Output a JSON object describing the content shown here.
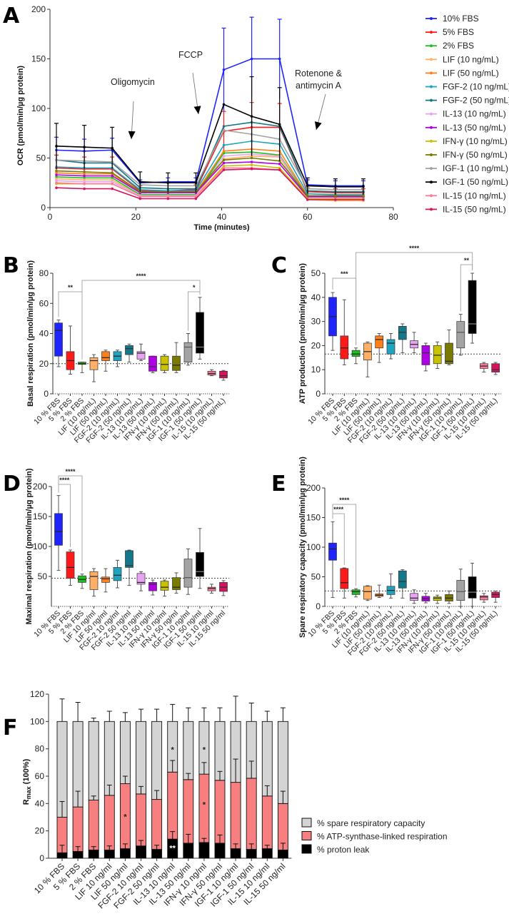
{
  "panels": [
    "A",
    "B",
    "C",
    "D",
    "E",
    "F"
  ],
  "colors": [
    "#1f24ff",
    "#ff1a1a",
    "#1fbf1f",
    "#ffb066",
    "#ff7f1a",
    "#1fa3bf",
    "#14788a",
    "#e8a3f2",
    "#b000e6",
    "#c9c200",
    "#7a7a00",
    "#a3a3a3",
    "#000000",
    "#ff7a99",
    "#d4145f"
  ],
  "chart_data": [
    {
      "panel": "A",
      "type": "line",
      "xlabel": "Time (minutes)",
      "ylabel": "OCR (pmol/min/µg protein)",
      "xlim": [
        0,
        80
      ],
      "ylim": [
        0,
        200
      ],
      "xticks": [
        "0",
        "20",
        "40",
        "60",
        "80"
      ],
      "yticks": [
        "0",
        "50",
        "100",
        "150",
        "200"
      ],
      "x": [
        1.5,
        8,
        14.5,
        21,
        27.5,
        34,
        40.5,
        47,
        53.5,
        60,
        66.5,
        73
      ],
      "annotations": [
        [
          "Oligomycin"
        ],
        [
          "FCCP"
        ],
        [
          "Rotenone &",
          "antimycin A"
        ]
      ],
      "series": [
        {
          "name": "10% FBS",
          "values": [
            58,
            57,
            58,
            25,
            26,
            26,
            139,
            150,
            150,
            23,
            22,
            22
          ],
          "err": [
            13,
            12,
            12,
            3,
            4,
            4,
            42,
            42,
            40,
            5,
            5,
            5
          ]
        },
        {
          "name": "5% FBS",
          "values": [
            40,
            39,
            39,
            17,
            17,
            18,
            77,
            81,
            81,
            16,
            15,
            15
          ],
          "err": [
            13,
            12,
            12,
            5,
            5,
            5,
            20,
            25,
            24,
            4,
            4,
            4
          ]
        },
        {
          "name": "2% FBS",
          "values": [
            31,
            30,
            30,
            13,
            13,
            13,
            55,
            56,
            53,
            11,
            10,
            10
          ]
        },
        {
          "name": "LIF (10 ng/mL)",
          "values": [
            29,
            28,
            28,
            12,
            11,
            11,
            49,
            52,
            51,
            8,
            7,
            7
          ]
        },
        {
          "name": "LIF (50 ng/mL)",
          "values": [
            35,
            34,
            34,
            15,
            15,
            15,
            57,
            59,
            57,
            12,
            11,
            11
          ]
        },
        {
          "name": "FGF-2 (10 ng/mL)",
          "values": [
            41,
            40,
            40,
            18,
            17,
            17,
            63,
            67,
            64,
            14,
            13,
            13
          ]
        },
        {
          "name": "FGF-2 (50 ng/mL)",
          "values": [
            48,
            45,
            45,
            20,
            19,
            19,
            82,
            86,
            82,
            17,
            16,
            16
          ]
        },
        {
          "name": "IL-13 (10 ng/mL)",
          "values": [
            27,
            26,
            26,
            12,
            12,
            12,
            52,
            54,
            52,
            10,
            10,
            10
          ]
        },
        {
          "name": "IL-13 (50 ng/mL)",
          "values": [
            33,
            32,
            32,
            15,
            15,
            15,
            45,
            46,
            44,
            11,
            11,
            11
          ]
        },
        {
          "name": "IFN-γ (10 ng/mL)",
          "values": [
            24,
            24,
            24,
            11,
            11,
            11,
            42,
            43,
            40,
            9,
            9,
            9
          ]
        },
        {
          "name": "IFN-γ (50 ng/mL)",
          "values": [
            37,
            36,
            35,
            16,
            16,
            16,
            48,
            50,
            47,
            12,
            12,
            12
          ]
        },
        {
          "name": "IGF-1 (10 ng/mL)",
          "values": [
            48,
            47,
            46,
            23,
            22,
            22,
            78,
            74,
            69,
            19,
            18,
            18
          ]
        },
        {
          "name": "IGF-1 (50 ng/mL)",
          "values": [
            62,
            61,
            60,
            26,
            25,
            25,
            104,
            92,
            84,
            22,
            21,
            21
          ],
          "err": [
            23,
            22,
            21,
            10,
            10,
            10,
            0,
            40,
            37,
            8,
            8,
            8
          ]
        },
        {
          "name": "IL-15 (10 ng/mL)",
          "values": [
            25,
            24,
            24,
            11,
            11,
            11,
            40,
            40,
            38,
            8,
            8,
            8
          ]
        },
        {
          "name": "IL-15 (50 ng/mL)",
          "values": [
            20,
            19,
            19,
            9,
            9,
            9,
            38,
            39,
            38,
            8,
            8,
            8
          ]
        }
      ]
    },
    {
      "panel": "B",
      "type": "box",
      "ylabel": "Basal respiration (pmol/min/µg protein)",
      "ylim": [
        0,
        80
      ],
      "yticks": [
        "0",
        "20",
        "40",
        "60",
        "80"
      ],
      "ref_line": 20,
      "categories": [
        "10 % FBS",
        "5 % FBS",
        "2 % FBS",
        "LIF (10 ng/mL)",
        "LIF (50 ng/mL)",
        "FGF-2 (10 ng/mL)",
        "FGF-2 (50 ng/mL)",
        "IL-13 (10 ng/mL)",
        "IL-13 (50 ng/mL)",
        "IFN-γ (10 ng/mL)",
        "IFN-γ (50 ng/mL)",
        "IGF-1 (10 ng/mL)",
        "IGF-1 (50 ng/mL)",
        "IL-15 (10 ng/mL)",
        "IL-15 (50 ng/mL)"
      ],
      "boxes": [
        [
          18,
          25,
          42,
          47,
          49
        ],
        [
          13,
          16,
          22,
          28,
          45
        ],
        [
          14,
          19.5,
          20,
          21,
          21
        ],
        [
          8,
          16,
          22,
          24,
          26
        ],
        [
          15,
          22,
          24,
          28,
          29
        ],
        [
          18,
          22,
          25,
          28,
          29
        ],
        [
          21,
          26,
          30,
          32,
          33
        ],
        [
          22,
          23,
          27,
          28,
          33
        ],
        [
          14,
          15,
          18,
          25,
          25
        ],
        [
          14,
          15.5,
          19.5,
          25,
          26
        ],
        [
          14,
          15.5,
          19,
          25,
          34
        ],
        [
          19,
          21,
          31,
          34,
          40
        ],
        [
          23,
          27,
          31,
          54,
          64
        ],
        [
          12,
          12.5,
          13.5,
          15,
          16
        ],
        [
          9,
          10.5,
          12,
          15,
          15.5
        ]
      ],
      "significance": [
        {
          "from": 0,
          "to": 2,
          "label": "**"
        },
        {
          "from": 2,
          "to": 12,
          "label": "****"
        },
        {
          "from": 11,
          "to": 12,
          "label": "*"
        }
      ]
    },
    {
      "panel": "C",
      "type": "box",
      "ylabel": "ATP production (pmol/min/µg protein)",
      "ylim": [
        0,
        50
      ],
      "yticks": [
        "0",
        "10",
        "20",
        "30",
        "40",
        "50"
      ],
      "ref_line": 16.5,
      "categories": [
        "10 % FBS",
        "5 % FBS",
        "2 % FBS",
        "LIF (10 ng/mL)",
        "LIF (50 ng/mL)",
        "FGF-2 (10 ng/mL)",
        "FGF-2 (50 ng/mL)",
        "IL-13 (10 ng/mL)",
        "IL-13 (50 ng/mL)",
        "IFN-γ (10 ng/mL)",
        "IFN-γ (50 ng/mL)",
        "IGF-1 (10 ng/mL)",
        "IGF-1 (50 ng/mL)",
        "IL-15 (10 ng/mL)",
        "IL-15 (50 ng/mL)"
      ],
      "boxes": [
        [
          18,
          24,
          32,
          40,
          42
        ],
        [
          12,
          14.5,
          19,
          24,
          39
        ],
        [
          12.5,
          15.5,
          16.5,
          18,
          19
        ],
        [
          7,
          14,
          17.5,
          21,
          21.5
        ],
        [
          13,
          19,
          22.5,
          24,
          25
        ],
        [
          14.5,
          16.5,
          21,
          22.5,
          25
        ],
        [
          17,
          22.5,
          25.5,
          28,
          29
        ],
        [
          17,
          19,
          20.5,
          22,
          25.5
        ],
        [
          9.5,
          12,
          17,
          20,
          21
        ],
        [
          10.5,
          12.5,
          16,
          20,
          21.5
        ],
        [
          12,
          12.5,
          13.5,
          21,
          26.5
        ],
        [
          16,
          19,
          25.5,
          30,
          33
        ],
        [
          21,
          25,
          29,
          47,
          50
        ],
        [
          9,
          10.5,
          11.5,
          12.5,
          13
        ],
        [
          8,
          9,
          10,
          12.5,
          13
        ]
      ],
      "significance": [
        {
          "from": 0,
          "to": 2,
          "label": "***"
        },
        {
          "from": 2,
          "to": 12,
          "label": "****"
        },
        {
          "from": 11,
          "to": 12,
          "label": "**"
        }
      ]
    },
    {
      "panel": "D",
      "type": "box",
      "ylabel": "Maximal respiration (pmol/min/µg protein)",
      "ylim": [
        0,
        200
      ],
      "yticks": [
        "50",
        "100",
        "150",
        "200"
      ],
      "ref_line": 47,
      "categories": [
        "10 % FBS",
        "5 % FBS",
        "2 % FBS",
        "LIF 10 ng/ml",
        "LIF 50 ng/ml",
        "FGF-2 10 ng/ml",
        "FGF-2 50 ng/ml",
        "IL-13 10 ng/ml",
        "IL-13 50 ng/ml",
        "IFN-γ 10 ng/ml",
        "IFN-γ 50 ng/ml",
        "IGF-1 10 ng/ml",
        "IGF-1 50 ng/ml",
        "IL-15 10 ng/ml",
        "IL-15 50 ng/ml"
      ],
      "boxes": [
        [
          60,
          102,
          125,
          155,
          185
        ],
        [
          35,
          47,
          65,
          91,
          94
        ],
        [
          30,
          40,
          45,
          51,
          54
        ],
        [
          17,
          28,
          50,
          58,
          63
        ],
        [
          24,
          40,
          46,
          49,
          63
        ],
        [
          31,
          43,
          52,
          65,
          77
        ],
        [
          35,
          65,
          68,
          93,
          94
        ],
        [
          26,
          37,
          40,
          55,
          58
        ],
        [
          19,
          26,
          37,
          40,
          44
        ],
        [
          17,
          27,
          32,
          42,
          44
        ],
        [
          22,
          28,
          32,
          48,
          56
        ],
        [
          20,
          32,
          48,
          79,
          96
        ],
        [
          30,
          50,
          58,
          90,
          130
        ],
        [
          22,
          26,
          30,
          32,
          37
        ],
        [
          18,
          25,
          32,
          40,
          43
        ]
      ],
      "significance": [
        {
          "from": 0,
          "to": 1,
          "label": "****"
        },
        {
          "from": 0,
          "to": 2,
          "label": "****"
        }
      ]
    },
    {
      "panel": "E",
      "type": "box",
      "ylabel": "Spare respiratory capacity (pmol/min/µg protein)",
      "ylim": [
        0,
        200
      ],
      "yticks": [
        "0",
        "50",
        "100",
        "150",
        "200"
      ],
      "ref_line": 26,
      "categories": [
        "10 % FBS",
        "5 % FBS",
        "2 % FBS",
        "LIF (10 ng/mL)",
        "LIF (50 ng/mL)",
        "FGF-2 (10 ng/mL)",
        "FGF-2 (50 ng/mL)",
        "IL-13 (10 ng/mL)",
        "IL-13 (50 ng/mL)",
        "IFN-γ (10 ng/mL)",
        "IFN-γ (50 ng/mL)",
        "IGF-1 (10 ng/mL)",
        "IGF-1 (50 ng/mL)",
        "IL-15 (10 ng/mL)",
        "IL-15 (50 ng/mL)"
      ],
      "boxes": [
        [
          15,
          78,
          97,
          107,
          143
        ],
        [
          14,
          30,
          40,
          64,
          65
        ],
        [
          16,
          20,
          25,
          28,
          30
        ],
        [
          10,
          12,
          25,
          34,
          35
        ],
        [
          15,
          17,
          19,
          21,
          36
        ],
        [
          14,
          20,
          27,
          34,
          55
        ],
        [
          14,
          31,
          42,
          60,
          62
        ],
        [
          5,
          10,
          14,
          22,
          28
        ],
        [
          6,
          9,
          13,
          17,
          22
        ],
        [
          5,
          10,
          14,
          16,
          19
        ],
        [
          5,
          9,
          14,
          20,
          26
        ],
        [
          0,
          10,
          25,
          44,
          63
        ],
        [
          0,
          14,
          24,
          50,
          73
        ],
        [
          7,
          11,
          16,
          18,
          22
        ],
        [
          7,
          15,
          20,
          24,
          26
        ]
      ],
      "significance": [
        {
          "from": 0,
          "to": 1,
          "label": "****"
        },
        {
          "from": 0,
          "to": 2,
          "label": "****"
        }
      ]
    },
    {
      "panel": "F",
      "type": "bar",
      "stacked": true,
      "ylabel": "R",
      "ylabel_sub": "max",
      "ylabel_suffix": " (100%)",
      "ylim": [
        0,
        120
      ],
      "yticks": [
        "0",
        "20",
        "40",
        "60",
        "80",
        "100",
        "120"
      ],
      "categories": [
        "10 % FBS",
        "5 % FBS",
        "2 % FBS",
        "LIF 10 ng/ml",
        "LIF 50 ng/ml",
        "FGF-2 10 ng/ml",
        "FGF-2 50 ng/ml",
        "IL-13 10 ng/ml",
        "IL-13 50 ng/ml",
        "IFN-γ 10 ng/ml",
        "IFN-γ 50 ng/ml",
        "IGF-1 10 ng/ml",
        "IGF-1 50 ng/ml",
        "IL-15 10 ng/ml",
        "IL-15 50 ng/ml"
      ],
      "series": [
        {
          "name": "% proton leak",
          "color": "#000000",
          "top": [
            4,
            5,
            6,
            6,
            7,
            9,
            6.5,
            14,
            11,
            11.5,
            11,
            7,
            6.5,
            7,
            6
          ],
          "err_top": [
            9.5,
            8.5,
            8.5,
            9,
            10.5,
            13,
            9.5,
            19.5,
            17.5,
            14.5,
            17,
            10.5,
            10.5,
            9.5,
            11
          ]
        },
        {
          "name": "% ATP-synthase-linked respiration",
          "color": "#f77f7f",
          "top": [
            30,
            37.5,
            42.5,
            46,
            54.5,
            47,
            43,
            63,
            57.5,
            61.5,
            57,
            55.5,
            58.5,
            45.5,
            40
          ],
          "err_top": [
            41.5,
            49,
            45.5,
            53.5,
            60,
            52.5,
            49.5,
            71.5,
            62,
            70,
            63.5,
            72.5,
            71,
            53,
            49
          ]
        },
        {
          "name": "% spare respiratory capacity",
          "color": "#d4d4d4",
          "top": [
            100,
            100,
            100,
            100,
            100,
            100,
            100,
            100,
            100,
            100,
            100,
            100,
            100,
            100,
            100
          ],
          "err_top": [
            116.5,
            114,
            102.5,
            107.5,
            106.5,
            109,
            109,
            112.5,
            110,
            110,
            110,
            118.5,
            113.5,
            107.5,
            110
          ]
        }
      ],
      "legend_order": [
        2,
        1,
        0
      ],
      "annotations": [
        {
          "category": 4,
          "y": 31,
          "label": "*",
          "color": "#222"
        },
        {
          "category": 7,
          "y": 80,
          "label": "*",
          "color": "#222"
        },
        {
          "category": 7,
          "y": 8,
          "label": "**",
          "color": "#ffffff"
        },
        {
          "category": 9,
          "y": 80,
          "label": "*",
          "color": "#222"
        },
        {
          "category": 9,
          "y": 40,
          "label": "*",
          "color": "#222"
        }
      ]
    }
  ]
}
